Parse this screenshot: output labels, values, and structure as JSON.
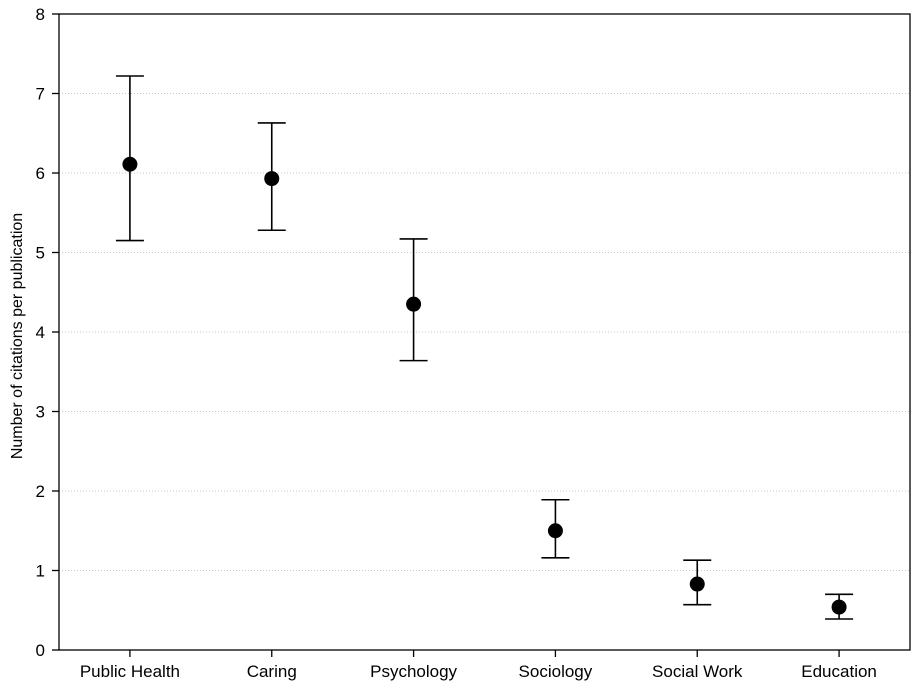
{
  "chart_data": {
    "type": "scatter",
    "title": "",
    "xlabel": "",
    "ylabel": "Number of citations per publication",
    "ylim": [
      0,
      8
    ],
    "yticks": [
      0,
      1,
      2,
      3,
      4,
      5,
      6,
      7,
      8
    ],
    "grid": "horizontal, dotted",
    "legend": "none",
    "categories": [
      "Public Health",
      "Caring",
      "Psychology",
      "Sociology",
      "Social Work",
      "Education"
    ],
    "series": [
      {
        "values": [
          6.11,
          5.93,
          4.35,
          1.5,
          0.83,
          0.54
        ],
        "error_low": [
          5.15,
          5.28,
          3.64,
          1.16,
          0.57,
          0.39
        ],
        "error_high": [
          7.22,
          6.63,
          5.17,
          1.89,
          1.13,
          0.7
        ]
      }
    ],
    "colors": {
      "marker": "#000000",
      "grid": "#c8c8c8"
    }
  }
}
